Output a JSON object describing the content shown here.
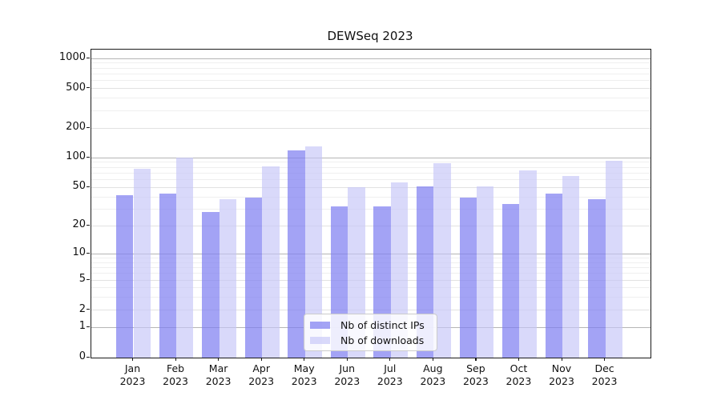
{
  "chart_data": {
    "type": "bar",
    "title": "DEWSeq 2023",
    "categories": [
      "Jan",
      "Feb",
      "Mar",
      "Apr",
      "May",
      "Jun",
      "Jul",
      "Aug",
      "Sep",
      "Oct",
      "Nov",
      "Dec"
    ],
    "category_year": "2023",
    "series": [
      {
        "name": "Nb of distinct IPs",
        "color": "rgba(128,128,241,0.72)",
        "values": [
          42,
          43,
          28,
          39,
          118,
          32,
          32,
          51,
          39,
          34,
          43,
          38
        ]
      },
      {
        "name": "Nb of downloads",
        "color": "rgba(197,197,247,0.65)",
        "values": [
          78,
          101,
          38,
          82,
          130,
          50,
          56,
          88,
          51,
          75,
          66,
          94
        ]
      }
    ],
    "yscale": "log1p",
    "yticks_labeled": [
      0,
      1,
      2,
      5,
      10,
      20,
      50,
      100,
      200,
      500,
      1000
    ],
    "yticks_major": [
      1,
      10,
      100,
      1000
    ],
    "ylim": [
      0,
      1229
    ],
    "xlabel": "",
    "ylabel": "",
    "grid": "on",
    "legend_position": "inside-lower-center"
  },
  "colors": {
    "major_grid": "#b5b5b5",
    "labeled_grid": "#e2e2e2",
    "minor_grid": "#efefef",
    "axis": "#1a1a1a",
    "legend_border": "#cccccc",
    "background": "#ffffff"
  }
}
